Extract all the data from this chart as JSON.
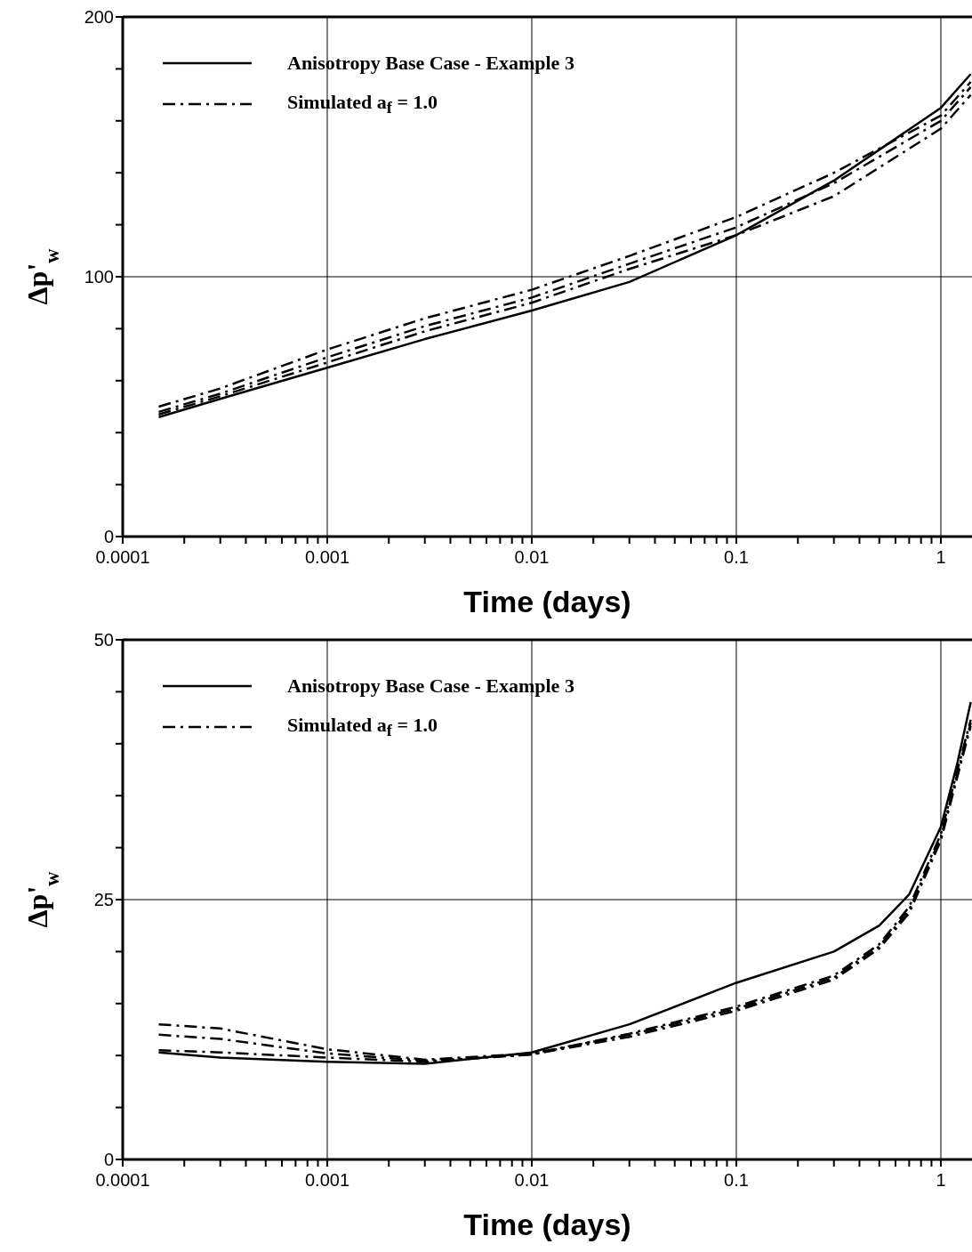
{
  "chart_data": [
    {
      "type": "line",
      "xlabel": "Time (days)",
      "ylabel": "Δp'$_{w}$",
      "log": "x",
      "grid": true,
      "legend": "top left",
      "xlim": [
        0.0001,
        1.42
      ],
      "ylim": [
        0,
        200
      ],
      "xticks": [
        0.0001,
        {
          "value": 0.0002,
          "label": null
        },
        {
          "value": 0.0003,
          "label": null
        },
        {
          "value": 0.0004,
          "label": null
        },
        {
          "value": 0.0005,
          "label": null
        },
        {
          "value": 0.0006,
          "label": null
        },
        {
          "value": 0.0007,
          "label": null
        },
        {
          "value": 0.0008,
          "label": null
        },
        {
          "value": 0.0009,
          "label": null
        },
        0.001,
        {
          "value": 0.002,
          "label": null
        },
        {
          "value": 0.003,
          "label": null
        },
        {
          "value": 0.004,
          "label": null
        },
        {
          "value": 0.005,
          "label": null
        },
        {
          "value": 0.006,
          "label": null
        },
        {
          "value": 0.007,
          "label": null
        },
        {
          "value": 0.008,
          "label": null
        },
        {
          "value": 0.009,
          "label": null
        },
        0.01,
        {
          "value": 0.02,
          "label": null
        },
        {
          "value": 0.03,
          "label": null
        },
        {
          "value": 0.04,
          "label": null
        },
        {
          "value": 0.05,
          "label": null
        },
        {
          "value": 0.06,
          "label": null
        },
        {
          "value": 0.07,
          "label": null
        },
        {
          "value": 0.08,
          "label": null
        },
        {
          "value": 0.09,
          "label": null
        },
        0.1,
        {
          "value": 0.2,
          "label": null
        },
        {
          "value": 0.3,
          "label": null
        },
        {
          "value": 0.4,
          "label": null
        },
        {
          "value": 0.5,
          "label": null
        },
        {
          "value": 0.6,
          "label": null
        },
        {
          "value": 0.7,
          "label": null
        },
        {
          "value": 0.8,
          "label": null
        },
        {
          "value": 0.9,
          "label": null
        },
        1
      ],
      "yticks": [
        0,
        {
          "value": 20,
          "label": null
        },
        {
          "value": 40,
          "label": null
        },
        {
          "value": 60,
          "label": null
        },
        {
          "value": 80,
          "label": null
        },
        100,
        {
          "value": 120,
          "label": null
        },
        {
          "value": 140,
          "label": null
        },
        {
          "value": 160,
          "label": null
        },
        {
          "value": 180,
          "label": null
        },
        200
      ],
      "series": [
        {
          "name": "Anisotropy Base Case - Example 3",
          "color": "#000000",
          "line_style": "solid",
          "x": [
            0.00015,
            0.0003,
            0.001,
            0.003,
            0.01,
            0.03,
            0.1,
            0.3,
            1,
            1.4
          ],
          "values": [
            46,
            53,
            65,
            76,
            87,
            98,
            116,
            137,
            165,
            178
          ]
        },
        {
          "name": "Simulated a$_{f}$ = 1.0",
          "color": "#000000",
          "line_style": "dashed",
          "x": [
            0.00015,
            0.0003,
            0.001,
            0.003,
            0.01,
            0.03,
            0.1,
            0.3,
            1,
            1.4
          ],
          "values": [
            50,
            57,
            72,
            84,
            95,
            108,
            123,
            140,
            162,
            175
          ]
        },
        {
          "color": "#000000",
          "line_style": "dashed",
          "x": [
            0.00015,
            0.0003,
            0.001,
            0.003,
            0.01,
            0.03,
            0.1,
            0.3,
            1,
            1.4
          ],
          "values": [
            48,
            55,
            69,
            81,
            92,
            105,
            119,
            136,
            160,
            173
          ]
        },
        {
          "color": "#000000",
          "line_style": "dashed",
          "x": [
            0.00015,
            0.0003,
            0.001,
            0.003,
            0.01,
            0.03,
            0.1,
            0.3,
            1,
            1.4
          ],
          "values": [
            47,
            54,
            67,
            79,
            90,
            103,
            116,
            131,
            157,
            170
          ]
        }
      ]
    },
    {
      "type": "line",
      "xlabel": "Time (days)",
      "ylabel": "Δp'$_{w}$",
      "log": "x",
      "grid": true,
      "legend": "top left",
      "xlim": [
        0.0001,
        1.42
      ],
      "ylim": [
        0,
        50
      ],
      "xticks": [
        0.0001,
        {
          "value": 0.0002,
          "label": null
        },
        {
          "value": 0.0003,
          "label": null
        },
        {
          "value": 0.0004,
          "label": null
        },
        {
          "value": 0.0005,
          "label": null
        },
        {
          "value": 0.0006,
          "label": null
        },
        {
          "value": 0.0007,
          "label": null
        },
        {
          "value": 0.0008,
          "label": null
        },
        {
          "value": 0.0009,
          "label": null
        },
        0.001,
        {
          "value": 0.002,
          "label": null
        },
        {
          "value": 0.003,
          "label": null
        },
        {
          "value": 0.004,
          "label": null
        },
        {
          "value": 0.005,
          "label": null
        },
        {
          "value": 0.006,
          "label": null
        },
        {
          "value": 0.007,
          "label": null
        },
        {
          "value": 0.008,
          "label": null
        },
        {
          "value": 0.009,
          "label": null
        },
        0.01,
        {
          "value": 0.02,
          "label": null
        },
        {
          "value": 0.03,
          "label": null
        },
        {
          "value": 0.04,
          "label": null
        },
        {
          "value": 0.05,
          "label": null
        },
        {
          "value": 0.06,
          "label": null
        },
        {
          "value": 0.07,
          "label": null
        },
        {
          "value": 0.08,
          "label": null
        },
        {
          "value": 0.09,
          "label": null
        },
        0.1,
        {
          "value": 0.2,
          "label": null
        },
        {
          "value": 0.3,
          "label": null
        },
        {
          "value": 0.4,
          "label": null
        },
        {
          "value": 0.5,
          "label": null
        },
        {
          "value": 0.6,
          "label": null
        },
        {
          "value": 0.7,
          "label": null
        },
        {
          "value": 0.8,
          "label": null
        },
        {
          "value": 0.9,
          "label": null
        },
        1
      ],
      "yticks": [
        0,
        {
          "value": 5,
          "label": null
        },
        {
          "value": 10,
          "label": null
        },
        {
          "value": 15,
          "label": null
        },
        {
          "value": 20,
          "label": null
        },
        25,
        {
          "value": 30,
          "label": null
        },
        {
          "value": 35,
          "label": null
        },
        {
          "value": 40,
          "label": null
        },
        {
          "value": 45,
          "label": null
        },
        50
      ],
      "series": [
        {
          "name": "Anisotropy Base Case - Example 3",
          "color": "#000000",
          "line_style": "solid",
          "x": [
            0.00015,
            0.0003,
            0.001,
            0.003,
            0.01,
            0.03,
            0.1,
            0.3,
            0.5,
            0.7,
            1,
            1.2,
            1.4
          ],
          "values": [
            10.3,
            9.8,
            9.4,
            9.2,
            10.3,
            13,
            17,
            20,
            22.5,
            25.5,
            32,
            38,
            44
          ]
        },
        {
          "name": "Simulated a$_{f}$ = 1.0",
          "color": "#000000",
          "line_style": "dashed",
          "x": [
            0.00015,
            0.0003,
            0.001,
            0.003,
            0.01,
            0.03,
            0.1,
            0.3,
            0.5,
            0.7,
            1,
            1.2,
            1.4
          ],
          "values": [
            13,
            12.6,
            10.6,
            9.6,
            10.2,
            12,
            14.5,
            17.5,
            20.5,
            24,
            31,
            37,
            42
          ]
        },
        {
          "color": "#000000",
          "line_style": "dashed",
          "x": [
            0.00015,
            0.0003,
            0.001,
            0.003,
            0.01,
            0.03,
            0.1,
            0.3,
            0.5,
            0.7,
            1,
            1.2,
            1.4
          ],
          "values": [
            12,
            11.6,
            10.2,
            9.5,
            10.1,
            11.8,
            14.3,
            17.3,
            20.3,
            23.7,
            30.7,
            36.7,
            41.7
          ]
        },
        {
          "color": "#000000",
          "line_style": "dashed",
          "x": [
            0.00015,
            0.0003,
            0.001,
            0.003,
            0.01,
            0.03,
            0.1,
            0.3,
            0.5,
            0.7,
            1,
            1.2,
            1.4
          ],
          "values": [
            10.5,
            10.3,
            9.8,
            9.4,
            10.1,
            12.1,
            14.7,
            17.7,
            20.7,
            24.3,
            31.3,
            37.3,
            42.3
          ]
        }
      ]
    }
  ]
}
